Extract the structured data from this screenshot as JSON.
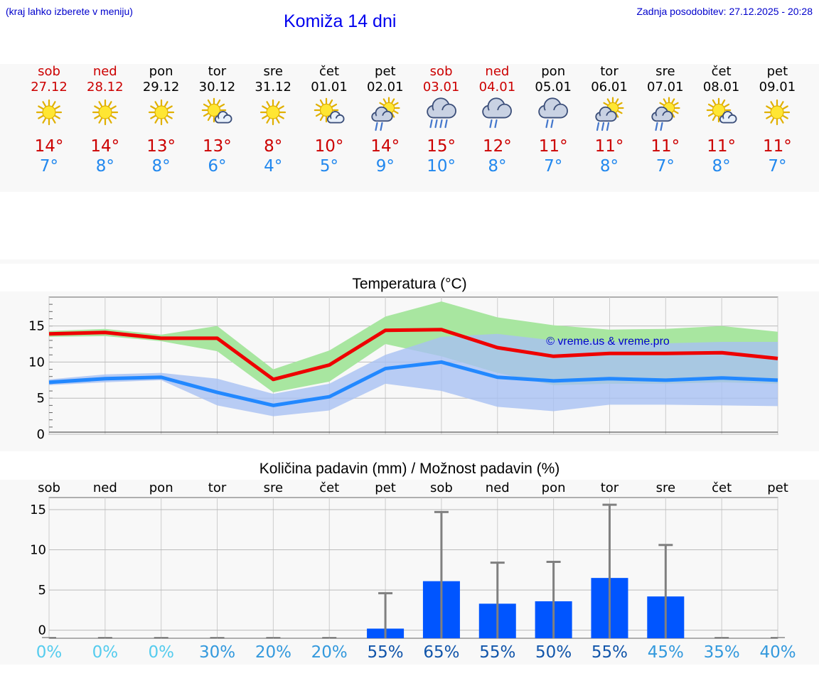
{
  "header": {
    "hint": "(kraj lahko izberete v meniju)",
    "title": "Komiža 14 dni",
    "updated": "Zadnja posodobitev: 27.12.2025 - 20:28"
  },
  "days": [
    {
      "name": "sob",
      "date": "27.12",
      "weekend": true,
      "icon": "sun-icon",
      "tmax": "14°",
      "tmin": "7°"
    },
    {
      "name": "ned",
      "date": "28.12",
      "weekend": true,
      "icon": "sun-icon",
      "tmax": "14°",
      "tmin": "8°"
    },
    {
      "name": "pon",
      "date": "29.12",
      "weekend": false,
      "icon": "sun-icon",
      "tmax": "13°",
      "tmin": "8°"
    },
    {
      "name": "tor",
      "date": "30.12",
      "weekend": false,
      "icon": "sun-cloud-icon",
      "tmax": "13°",
      "tmin": "6°"
    },
    {
      "name": "sre",
      "date": "31.12",
      "weekend": false,
      "icon": "sun-icon",
      "tmax": "8°",
      "tmin": "4°"
    },
    {
      "name": "čet",
      "date": "01.01",
      "weekend": false,
      "icon": "sun-cloud-icon",
      "tmax": "10°",
      "tmin": "5°"
    },
    {
      "name": "pet",
      "date": "02.01",
      "weekend": false,
      "icon": "sun-cloud-rain-icon",
      "tmax": "14°",
      "tmin": "9°"
    },
    {
      "name": "sob",
      "date": "03.01",
      "weekend": true,
      "icon": "cloud-heavy-rain-icon",
      "tmax": "15°",
      "tmin": "10°"
    },
    {
      "name": "ned",
      "date": "04.01",
      "weekend": true,
      "icon": "cloud-rain-icon",
      "tmax": "12°",
      "tmin": "8°"
    },
    {
      "name": "pon",
      "date": "05.01",
      "weekend": false,
      "icon": "cloud-rain-icon",
      "tmax": "11°",
      "tmin": "7°"
    },
    {
      "name": "tor",
      "date": "06.01",
      "weekend": false,
      "icon": "sun-cloud-heavy-rain-icon",
      "tmax": "11°",
      "tmin": "8°"
    },
    {
      "name": "sre",
      "date": "07.01",
      "weekend": false,
      "icon": "sun-cloud-rain-icon",
      "tmax": "11°",
      "tmin": "7°"
    },
    {
      "name": "čet",
      "date": "08.01",
      "weekend": false,
      "icon": "sun-cloud-icon",
      "tmax": "11°",
      "tmin": "8°"
    },
    {
      "name": "pet",
      "date": "09.01",
      "weekend": false,
      "icon": "sun-icon",
      "tmax": "11°",
      "tmin": "7°"
    }
  ],
  "colors": {
    "weekend": "#cc0000",
    "max_line": "#ee0000",
    "min_line": "#2288ff",
    "max_band": "#a8e6a0",
    "min_band": "#a8c0f2",
    "bar": "#0055ff",
    "whisker": "#808080"
  },
  "chart_data": [
    {
      "type": "line",
      "title": "Temperatura (°C)",
      "watermark": "© vreme.us & vreme.pro",
      "ylim": [
        0,
        19
      ],
      "yticks": [
        0,
        5,
        10,
        15
      ],
      "x": [
        0,
        1,
        2,
        3,
        4,
        5,
        6,
        7,
        8,
        9,
        10,
        11,
        12,
        13
      ],
      "series": [
        {
          "name": "max",
          "values": [
            13.9,
            14.1,
            13.3,
            13.3,
            7.6,
            9.6,
            14.4,
            14.5,
            12.0,
            10.8,
            11.2,
            11.2,
            11.3,
            10.5
          ],
          "band_low": [
            13.5,
            13.6,
            12.9,
            11.5,
            5.8,
            7.3,
            12.5,
            10.8,
            8.5,
            6.8,
            7.0,
            7.0,
            7.2,
            7.0
          ],
          "band_high": [
            14.3,
            14.6,
            13.8,
            15.0,
            9.0,
            11.6,
            16.3,
            18.4,
            16.2,
            15.1,
            14.5,
            14.6,
            15.0,
            14.2
          ]
        },
        {
          "name": "min",
          "values": [
            7.2,
            7.7,
            7.9,
            5.8,
            4.0,
            5.2,
            9.1,
            10.0,
            7.9,
            7.4,
            7.7,
            7.5,
            7.8,
            7.5
          ],
          "band_low": [
            6.8,
            7.2,
            7.5,
            4.0,
            2.5,
            3.3,
            7.0,
            6.0,
            3.8,
            3.2,
            4.1,
            4.1,
            4.0,
            3.9
          ],
          "band_high": [
            7.6,
            8.3,
            8.5,
            7.7,
            5.6,
            7.0,
            11.0,
            13.5,
            13.9,
            13.0,
            12.8,
            12.6,
            12.8,
            12.8
          ]
        }
      ]
    },
    {
      "type": "bar",
      "title": "Količina padavin (mm) / Možnost padavin (%)",
      "ylim": [
        -1,
        16.5
      ],
      "yticks": [
        0,
        5,
        10,
        15
      ],
      "categories": [
        "sob",
        "ned",
        "pon",
        "tor",
        "sre",
        "čet",
        "pet",
        "sob",
        "ned",
        "pon",
        "tor",
        "sre",
        "čet",
        "pet"
      ],
      "values": [
        0,
        0,
        0,
        0,
        0,
        0,
        0.2,
        6.1,
        3.3,
        3.6,
        6.5,
        4.2,
        0,
        0
      ],
      "whisker_max": [
        0,
        0,
        0,
        0,
        0,
        0,
        4.6,
        14.7,
        8.4,
        8.5,
        15.6,
        10.6,
        0,
        0
      ],
      "probability": [
        "0%",
        "0%",
        "0%",
        "30%",
        "20%",
        "20%",
        "55%",
        "65%",
        "55%",
        "50%",
        "55%",
        "45%",
        "35%",
        "40%"
      ],
      "probability_colors": [
        "#55ccee",
        "#55ccee",
        "#55ccee",
        "#3399dd",
        "#3399dd",
        "#3399dd",
        "#1155aa",
        "#1155aa",
        "#1155aa",
        "#1155aa",
        "#1155aa",
        "#3399dd",
        "#3399dd",
        "#3399dd"
      ]
    }
  ]
}
